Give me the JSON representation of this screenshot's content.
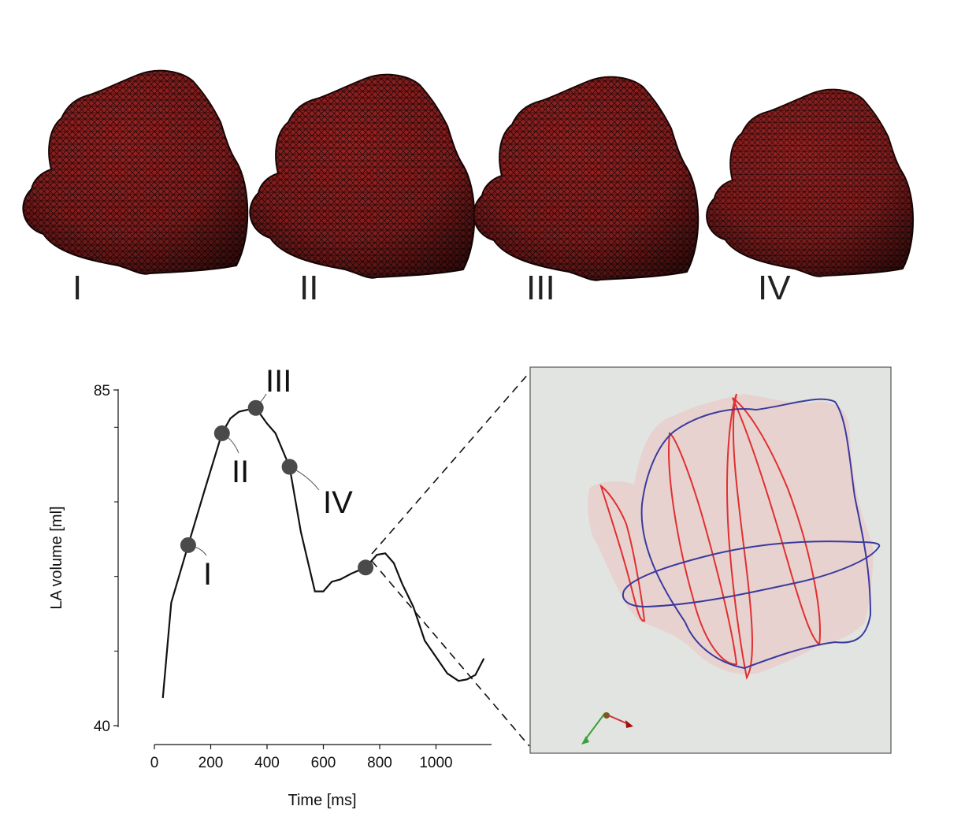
{
  "figure": {
    "panel_labels": [
      "I",
      "II",
      "III",
      "IV"
    ]
  },
  "chart_data": {
    "type": "line",
    "xlabel": "Time [ms]",
    "ylabel": "LA volume [ml]",
    "xlim": [
      0,
      1190
    ],
    "ylim": [
      40,
      85
    ],
    "xticks": [
      0,
      200,
      400,
      600,
      800,
      1000
    ],
    "yticks": [
      40,
      85
    ],
    "series": [
      {
        "x": [
          30,
          60,
          120,
          180,
          240,
          270,
          300,
          360,
          400,
          430,
          480,
          520,
          560,
          570,
          600,
          630,
          660,
          700,
          750,
          790,
          820,
          850,
          880,
          920,
          960,
          1000,
          1040,
          1080,
          1110,
          1140,
          1170
        ],
        "y": [
          43.7,
          56.5,
          64.2,
          71.8,
          79.2,
          81.2,
          82.1,
          82.6,
          80.5,
          79.2,
          74.7,
          66.0,
          59.6,
          58.0,
          58.0,
          59.3,
          59.6,
          60.4,
          61.2,
          62.9,
          63.1,
          61.8,
          59.0,
          55.9,
          51.4,
          49.2,
          47.0,
          46.0,
          46.2,
          46.8,
          49.0
        ]
      }
    ],
    "markers": [
      {
        "label": "I",
        "x": 120,
        "y": 64.2
      },
      {
        "label": "II",
        "x": 240,
        "y": 79.2
      },
      {
        "label": "III",
        "x": 360,
        "y": 82.6
      },
      {
        "label": "IV",
        "x": 480,
        "y": 74.7
      },
      {
        "label": "",
        "x": 750,
        "y": 61.2
      }
    ],
    "colors": {
      "line": "#111111",
      "marker": "#4a4a4a",
      "mesh": "#7a1a1a",
      "contour_red": "#e03030",
      "contour_blue": "#3a3a9e",
      "inset_bg": "#e2e4e1"
    }
  }
}
